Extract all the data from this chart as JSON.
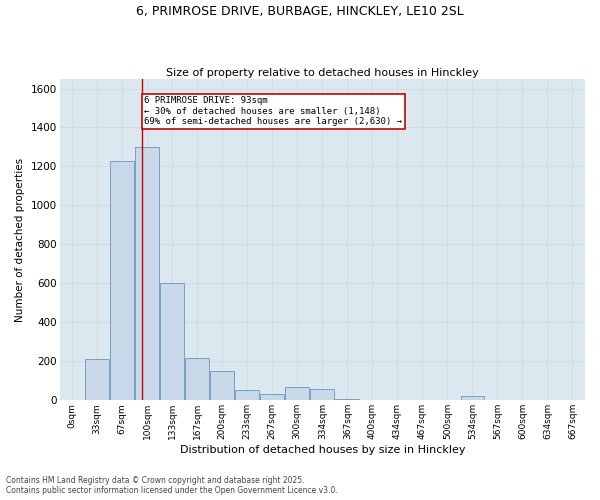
{
  "title_line1": "6, PRIMROSE DRIVE, BURBAGE, HINCKLEY, LE10 2SL",
  "title_line2": "Size of property relative to detached houses in Hinckley",
  "xlabel": "Distribution of detached houses by size in Hinckley",
  "ylabel": "Number of detached properties",
  "bar_color": "#c8d8e8",
  "bar_edge_color": "#6699bb",
  "grid_color": "#ccdde8",
  "background_color": "#dce8f0",
  "annotation_box_color": "#cc0000",
  "vline_color": "#cc0000",
  "categories": [
    "0sqm",
    "33sqm",
    "67sqm",
    "100sqm",
    "133sqm",
    "167sqm",
    "200sqm",
    "233sqm",
    "267sqm",
    "300sqm",
    "334sqm",
    "367sqm",
    "400sqm",
    "434sqm",
    "467sqm",
    "500sqm",
    "534sqm",
    "567sqm",
    "600sqm",
    "634sqm",
    "667sqm"
  ],
  "values": [
    0,
    210,
    1230,
    1300,
    600,
    215,
    150,
    55,
    30,
    70,
    60,
    5,
    0,
    0,
    0,
    0,
    20,
    0,
    0,
    0,
    0
  ],
  "ylim": [
    0,
    1650
  ],
  "yticks": [
    0,
    200,
    400,
    600,
    800,
    1000,
    1200,
    1400,
    1600
  ],
  "annotation_text": "6 PRIMROSE DRIVE: 93sqm\n← 30% of detached houses are smaller (1,148)\n69% of semi-detached houses are larger (2,630) →",
  "footer_line1": "Contains HM Land Registry data © Crown copyright and database right 2025.",
  "footer_line2": "Contains public sector information licensed under the Open Government Licence v3.0."
}
